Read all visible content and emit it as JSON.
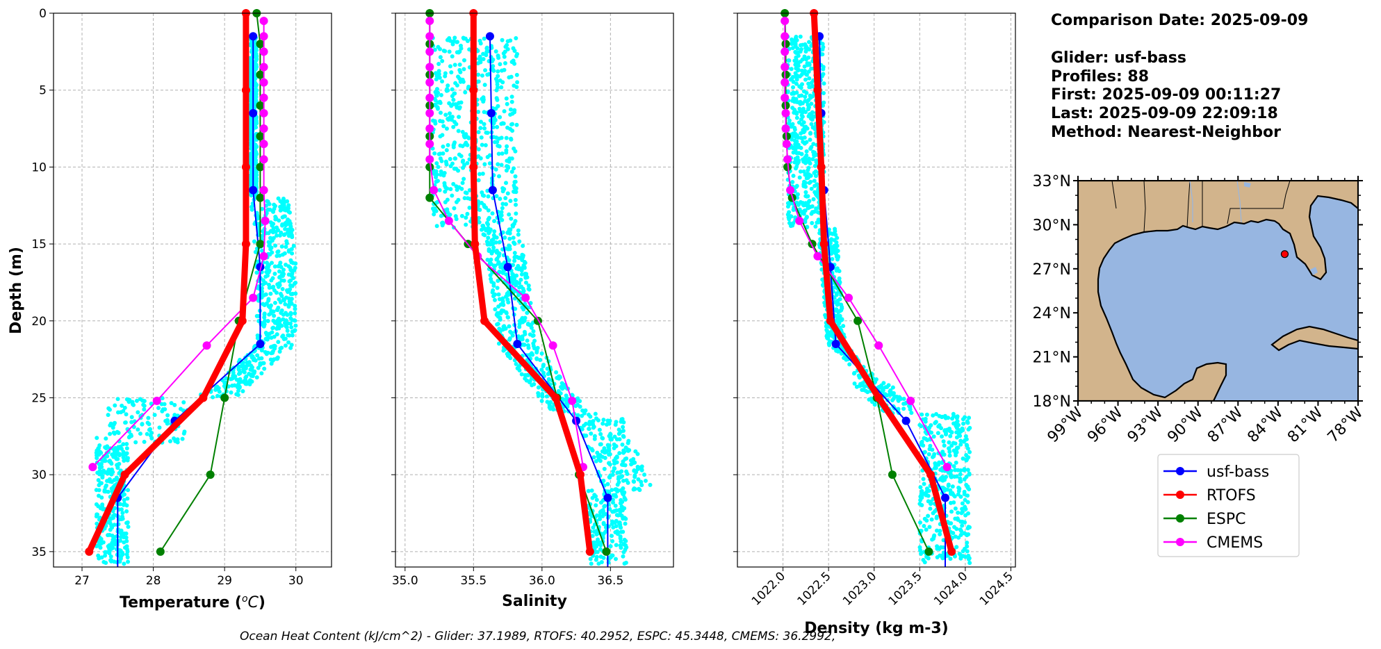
{
  "summary": {
    "comparison_date": "Comparison Date: 2025-09-09",
    "glider": "Glider: usf-bass",
    "profiles": "Profiles: 88",
    "first": "First: 2025-09-09 00:11:27",
    "last": "Last: 2025-09-09 22:09:18",
    "method": "Method: Nearest-Neighbor"
  },
  "footer": "Ocean Heat Content (kJ/cm^2) - Glider: 37.1989,  RTOFS: 40.2952,  ESPC: 45.3448,  CMEMS: 36.2992,",
  "colors": {
    "glider": "#0000ff",
    "rtofs": "#ff0000",
    "espc": "#008000",
    "cmems": "#ff00ff",
    "scatter": "#00ffff",
    "land": "#d2b48c",
    "ocean": "#97b6e1"
  },
  "legend": [
    "usf-bass",
    "RTOFS",
    "ESPC",
    "CMEMS"
  ],
  "chart_data": [
    {
      "type": "line",
      "xlabel": "Temperature (°C)",
      "ylabel": "Depth (m)",
      "xlim": [
        26.6,
        30.5
      ],
      "ylim": [
        36,
        0
      ],
      "xticks": [
        "27",
        "28",
        "29",
        "30"
      ],
      "yticks": [
        "0",
        "5",
        "10",
        "15",
        "20",
        "25",
        "30",
        "35"
      ],
      "grid": true,
      "series": [
        {
          "name": "usf-bass",
          "points": [
            [
              29.4,
              1.5
            ],
            [
              29.4,
              6.5
            ],
            [
              29.4,
              11.5
            ],
            [
              29.5,
              16.5
            ],
            [
              29.5,
              21.5
            ],
            [
              28.3,
              26.5
            ],
            [
              27.5,
              31.5
            ],
            [
              27.5,
              36
            ]
          ]
        },
        {
          "name": "RTOFS",
          "points": [
            [
              29.3,
              0
            ],
            [
              29.3,
              5
            ],
            [
              29.3,
              10
            ],
            [
              29.3,
              15
            ],
            [
              29.25,
              20
            ],
            [
              28.7,
              25
            ],
            [
              27.6,
              30
            ],
            [
              27.1,
              35
            ]
          ]
        },
        {
          "name": "ESPC",
          "points": [
            [
              29.45,
              0
            ],
            [
              29.5,
              2
            ],
            [
              29.5,
              4
            ],
            [
              29.5,
              6
            ],
            [
              29.5,
              8
            ],
            [
              29.5,
              10
            ],
            [
              29.5,
              12
            ],
            [
              29.5,
              15
            ],
            [
              29.2,
              20
            ],
            [
              29.0,
              25
            ],
            [
              28.8,
              30
            ],
            [
              28.1,
              35
            ]
          ]
        },
        {
          "name": "CMEMS",
          "points": [
            [
              29.55,
              0.5
            ],
            [
              29.55,
              1.5
            ],
            [
              29.55,
              2.5
            ],
            [
              29.55,
              3.5
            ],
            [
              29.55,
              4.5
            ],
            [
              29.55,
              5.5
            ],
            [
              29.55,
              6.5
            ],
            [
              29.55,
              7.5
            ],
            [
              29.55,
              8.5
            ],
            [
              29.55,
              9.5
            ],
            [
              29.55,
              11.5
            ],
            [
              29.57,
              13.5
            ],
            [
              29.55,
              15.8
            ],
            [
              29.4,
              18.5
            ],
            [
              28.75,
              21.6
            ],
            [
              28.05,
              25.2
            ],
            [
              27.15,
              29.5
            ]
          ]
        }
      ]
    },
    {
      "type": "line",
      "xlabel": "Salinity",
      "xlim": [
        34.93,
        36.96
      ],
      "ylim": [
        36,
        0
      ],
      "xticks": [
        "35.0",
        "35.5",
        "36.0",
        "36.5"
      ],
      "grid": true,
      "series": [
        {
          "name": "usf-bass",
          "points": [
            [
              35.62,
              1.5
            ],
            [
              35.63,
              6.5
            ],
            [
              35.64,
              11.5
            ],
            [
              35.75,
              16.5
            ],
            [
              35.82,
              21.5
            ],
            [
              36.25,
              26.5
            ],
            [
              36.48,
              31.5
            ],
            [
              36.48,
              36
            ]
          ]
        },
        {
          "name": "RTOFS",
          "points": [
            [
              35.5,
              0
            ],
            [
              35.5,
              5
            ],
            [
              35.5,
              10
            ],
            [
              35.51,
              15
            ],
            [
              35.58,
              20
            ],
            [
              36.1,
              25
            ],
            [
              36.28,
              30
            ],
            [
              36.35,
              35
            ]
          ]
        },
        {
          "name": "ESPC",
          "points": [
            [
              35.18,
              0
            ],
            [
              35.18,
              2
            ],
            [
              35.18,
              4
            ],
            [
              35.18,
              6
            ],
            [
              35.18,
              8
            ],
            [
              35.18,
              10
            ],
            [
              35.18,
              12
            ],
            [
              35.46,
              15
            ],
            [
              35.97,
              20
            ],
            [
              36.11,
              25
            ],
            [
              36.27,
              30
            ],
            [
              36.47,
              35
            ]
          ]
        },
        {
          "name": "CMEMS",
          "points": [
            [
              35.18,
              0.5
            ],
            [
              35.18,
              1.5
            ],
            [
              35.18,
              2.5
            ],
            [
              35.18,
              3.5
            ],
            [
              35.18,
              4.5
            ],
            [
              35.18,
              5.5
            ],
            [
              35.18,
              6.5
            ],
            [
              35.18,
              7.5
            ],
            [
              35.18,
              8.5
            ],
            [
              35.18,
              9.5
            ],
            [
              35.21,
              11.5
            ],
            [
              35.32,
              13.5
            ],
            [
              35.53,
              15.8
            ],
            [
              35.88,
              18.5
            ],
            [
              36.08,
              21.6
            ],
            [
              36.22,
              25.2
            ],
            [
              36.3,
              29.5
            ]
          ]
        }
      ]
    },
    {
      "type": "line",
      "xlabel": "Density (kg m-3)",
      "xlim": [
        1021.5,
        1024.55
      ],
      "ylim": [
        36,
        0
      ],
      "xticks": [
        "1022.0",
        "1022.5",
        "1023.0",
        "1023.5",
        "1024.0",
        "1024.5"
      ],
      "grid": true,
      "series": [
        {
          "name": "usf-bass",
          "points": [
            [
              1022.4,
              1.5
            ],
            [
              1022.42,
              6.5
            ],
            [
              1022.45,
              11.5
            ],
            [
              1022.52,
              16.5
            ],
            [
              1022.58,
              21.5
            ],
            [
              1023.35,
              26.5
            ],
            [
              1023.78,
              31.5
            ],
            [
              1023.78,
              36
            ]
          ]
        },
        {
          "name": "RTOFS",
          "points": [
            [
              1022.34,
              0
            ],
            [
              1022.38,
              5
            ],
            [
              1022.42,
              10
            ],
            [
              1022.45,
              15
            ],
            [
              1022.52,
              20
            ],
            [
              1023.05,
              25
            ],
            [
              1023.62,
              30
            ],
            [
              1023.85,
              35
            ]
          ]
        },
        {
          "name": "ESPC",
          "points": [
            [
              1022.02,
              0
            ],
            [
              1022.03,
              2
            ],
            [
              1022.03,
              4
            ],
            [
              1022.03,
              6
            ],
            [
              1022.04,
              8
            ],
            [
              1022.05,
              10
            ],
            [
              1022.1,
              12
            ],
            [
              1022.32,
              15
            ],
            [
              1022.82,
              20
            ],
            [
              1023.03,
              25
            ],
            [
              1023.2,
              30
            ],
            [
              1023.6,
              35
            ]
          ]
        },
        {
          "name": "CMEMS",
          "points": [
            [
              1022.02,
              0.5
            ],
            [
              1022.02,
              1.5
            ],
            [
              1022.02,
              2.5
            ],
            [
              1022.02,
              3.5
            ],
            [
              1022.02,
              4.5
            ],
            [
              1022.02,
              5.5
            ],
            [
              1022.03,
              6.5
            ],
            [
              1022.03,
              7.5
            ],
            [
              1022.04,
              8.5
            ],
            [
              1022.05,
              9.5
            ],
            [
              1022.08,
              11.5
            ],
            [
              1022.18,
              13.5
            ],
            [
              1022.38,
              15.8
            ],
            [
              1022.72,
              18.5
            ],
            [
              1023.05,
              21.6
            ],
            [
              1023.4,
              25.2
            ],
            [
              1023.8,
              29.5
            ]
          ]
        }
      ]
    }
  ],
  "map": {
    "lat_ticks": [
      "33°N",
      "30°N",
      "27°N",
      "24°N",
      "21°N",
      "18°N"
    ],
    "lon_ticks": [
      "99°W",
      "96°W",
      "93°W",
      "90°W",
      "87°W",
      "84°W",
      "81°W",
      "78°W"
    ],
    "extent": {
      "lon": [
        -99,
        -78
      ],
      "lat": [
        18,
        33
      ]
    },
    "glider_position": {
      "lon": -83.5,
      "lat": 28.0
    }
  }
}
